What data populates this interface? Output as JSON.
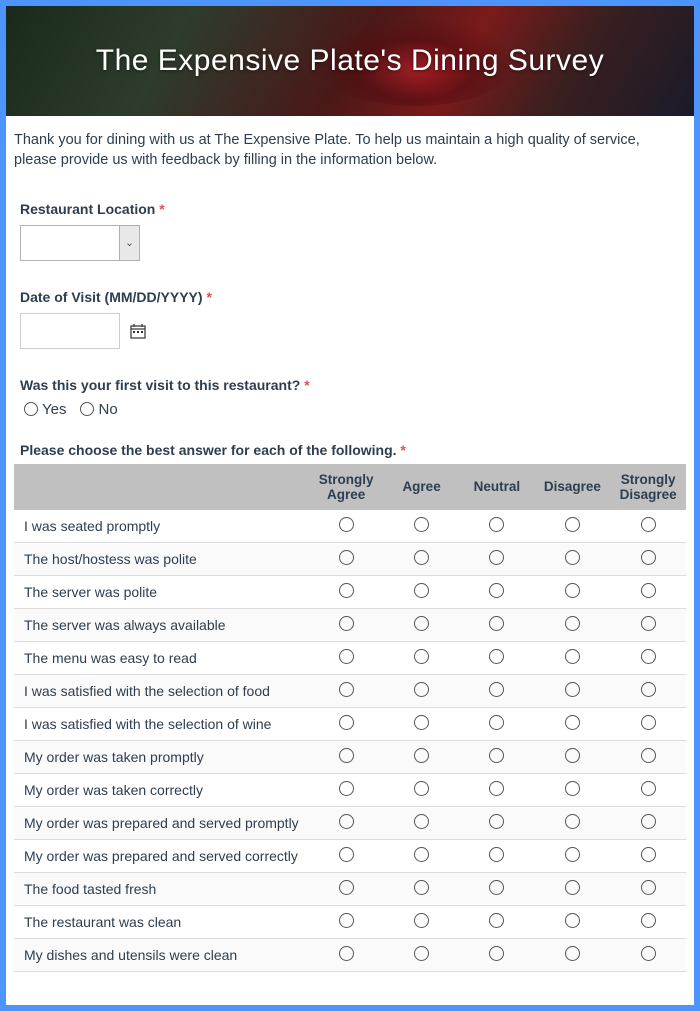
{
  "header": {
    "title": "The Expensive Plate's Dining Survey"
  },
  "intro": "Thank you for dining with us at The Expensive Plate. To help us maintain a high quality of service, please provide us with feedback by filling in the information below.",
  "fields": {
    "location": {
      "label": "Restaurant Location",
      "required": "*"
    },
    "date": {
      "label": "Date of Visit (MM/DD/YYYY)",
      "required": "*"
    },
    "first_visit": {
      "label": "Was this your first visit to this restaurant?",
      "required": "*",
      "options": {
        "yes": "Yes",
        "no": "No"
      }
    }
  },
  "matrix": {
    "label": "Please choose the best answer for each of the following.",
    "required": "*",
    "columns": [
      "Strongly Agree",
      "Agree",
      "Neutral",
      "Disagree",
      "Strongly Disagree"
    ],
    "rows": [
      "I was seated promptly",
      "The host/hostess was polite",
      "The server was polite",
      "The server was always available",
      "The menu was easy to read",
      "I was satisfied with the selection of food",
      "I was satisfied with the selection of wine",
      "My order was taken promptly",
      "My order was taken correctly",
      "My order was prepared and served promptly",
      "My order was prepared and served correctly",
      "The food tasted fresh",
      "The restaurant was clean",
      "My dishes and utensils were clean"
    ]
  },
  "colors": {
    "border": "#4d94ff",
    "text": "#2c3e50",
    "required": "#d9534f",
    "header_bg": "#c0c0c0",
    "row_divider": "#dddddd"
  }
}
